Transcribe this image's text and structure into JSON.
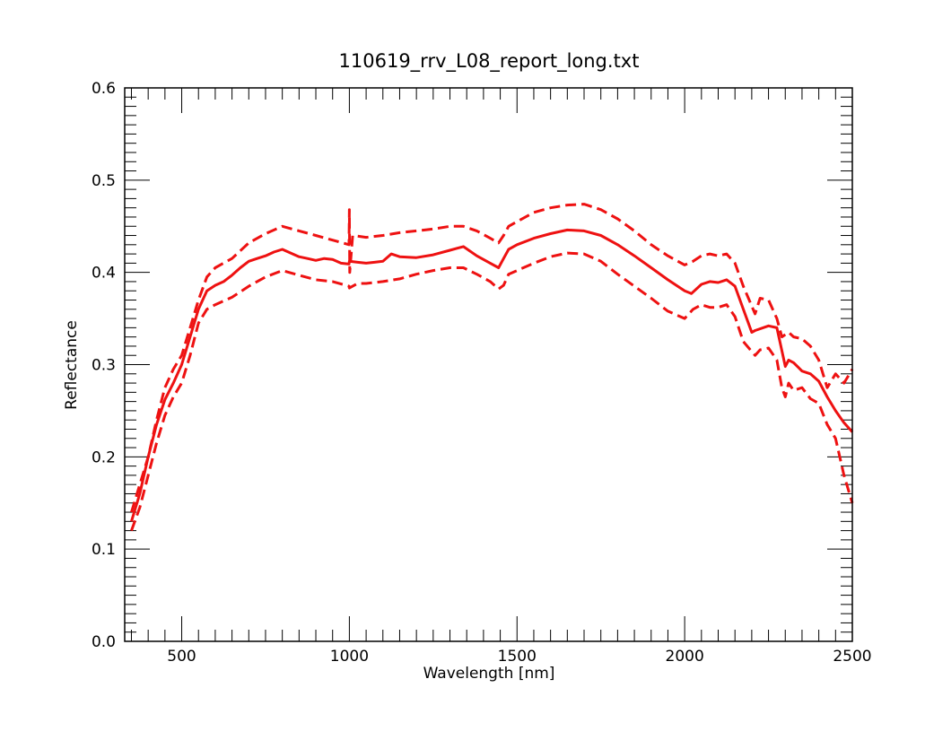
{
  "chart_data": {
    "type": "line",
    "title": "110619_rrv_L08_report_long.txt",
    "xlabel": "Wavelength [nm]",
    "ylabel": "Reflectance",
    "xlim": [
      330,
      2500
    ],
    "ylim": [
      0.0,
      0.6
    ],
    "x_ticks": [
      500,
      1000,
      1500,
      2000,
      2500
    ],
    "x_tick_labels": [
      "500",
      "1000",
      "1500",
      "2000",
      "2500"
    ],
    "y_ticks": [
      0.0,
      0.1,
      0.2,
      0.3,
      0.4,
      0.5,
      0.6
    ],
    "y_tick_labels": [
      "0.0",
      "0.1",
      "0.2",
      "0.3",
      "0.4",
      "0.5",
      "0.6"
    ],
    "grid": false,
    "series_color": "#ee1111",
    "series": [
      {
        "role": "mean",
        "style": "solid",
        "x": [
          350,
          375,
          400,
          425,
          450,
          475,
          500,
          525,
          550,
          575,
          600,
          625,
          650,
          675,
          700,
          725,
          750,
          775,
          800,
          825,
          850,
          875,
          900,
          925,
          950,
          975,
          999,
          1000,
          1025,
          1050,
          1075,
          1100,
          1125,
          1150,
          1200,
          1250,
          1300,
          1340,
          1380,
          1420,
          1445,
          1460,
          1475,
          1500,
          1550,
          1600,
          1650,
          1700,
          1750,
          1800,
          1850,
          1900,
          1950,
          2000,
          2020,
          2050,
          2075,
          2100,
          2125,
          2150,
          2175,
          2200,
          2210,
          2250,
          2275,
          2290,
          2300,
          2310,
          2325,
          2350,
          2375,
          2400,
          2425,
          2450,
          2475,
          2500
        ],
        "y": [
          0.13,
          0.16,
          0.2,
          0.235,
          0.262,
          0.28,
          0.3,
          0.33,
          0.36,
          0.38,
          0.386,
          0.39,
          0.397,
          0.405,
          0.412,
          0.415,
          0.418,
          0.422,
          0.425,
          0.421,
          0.417,
          0.415,
          0.413,
          0.415,
          0.414,
          0.41,
          0.409,
          0.412,
          0.411,
          0.41,
          0.411,
          0.412,
          0.42,
          0.417,
          0.416,
          0.419,
          0.424,
          0.428,
          0.418,
          0.41,
          0.405,
          0.415,
          0.425,
          0.43,
          0.437,
          0.442,
          0.446,
          0.445,
          0.44,
          0.43,
          0.418,
          0.405,
          0.392,
          0.38,
          0.377,
          0.387,
          0.39,
          0.389,
          0.392,
          0.385,
          0.36,
          0.335,
          0.337,
          0.342,
          0.34,
          0.315,
          0.298,
          0.305,
          0.302,
          0.293,
          0.29,
          0.282,
          0.265,
          0.25,
          0.237,
          0.227
        ]
      },
      {
        "role": "upper",
        "style": "dashed",
        "x": [
          350,
          375,
          400,
          425,
          450,
          475,
          500,
          525,
          550,
          575,
          600,
          650,
          700,
          750,
          800,
          850,
          900,
          950,
          999,
          1000,
          1001,
          1010,
          1050,
          1100,
          1150,
          1200,
          1250,
          1300,
          1340,
          1380,
          1420,
          1445,
          1460,
          1475,
          1500,
          1550,
          1600,
          1650,
          1700,
          1750,
          1800,
          1850,
          1900,
          1950,
          2000,
          2025,
          2050,
          2075,
          2100,
          2125,
          2150,
          2175,
          2210,
          2225,
          2250,
          2275,
          2290,
          2310,
          2325,
          2350,
          2375,
          2400,
          2425,
          2450,
          2475,
          2500
        ],
        "y": [
          0.14,
          0.17,
          0.2,
          0.24,
          0.275,
          0.295,
          0.31,
          0.34,
          0.37,
          0.395,
          0.405,
          0.415,
          0.432,
          0.442,
          0.45,
          0.445,
          0.44,
          0.435,
          0.43,
          0.468,
          0.4,
          0.44,
          0.438,
          0.44,
          0.443,
          0.445,
          0.447,
          0.45,
          0.45,
          0.445,
          0.437,
          0.432,
          0.44,
          0.45,
          0.455,
          0.465,
          0.47,
          0.473,
          0.474,
          0.468,
          0.458,
          0.445,
          0.43,
          0.418,
          0.408,
          0.412,
          0.418,
          0.42,
          0.418,
          0.42,
          0.41,
          0.385,
          0.355,
          0.372,
          0.37,
          0.35,
          0.33,
          0.335,
          0.33,
          0.328,
          0.32,
          0.305,
          0.275,
          0.29,
          0.28,
          0.295
        ]
      },
      {
        "role": "lower",
        "style": "dashed",
        "x": [
          350,
          375,
          400,
          425,
          450,
          475,
          500,
          525,
          550,
          575,
          600,
          650,
          700,
          750,
          800,
          850,
          900,
          950,
          999,
          1000,
          1025,
          1050,
          1100,
          1150,
          1200,
          1250,
          1300,
          1340,
          1380,
          1420,
          1445,
          1460,
          1475,
          1500,
          1550,
          1600,
          1650,
          1700,
          1750,
          1800,
          1850,
          1900,
          1950,
          2000,
          2025,
          2050,
          2075,
          2100,
          2125,
          2150,
          2175,
          2210,
          2225,
          2250,
          2275,
          2290,
          2300,
          2310,
          2325,
          2350,
          2375,
          2400,
          2425,
          2450,
          2475,
          2500
        ],
        "y": [
          0.12,
          0.145,
          0.18,
          0.215,
          0.245,
          0.265,
          0.28,
          0.31,
          0.345,
          0.36,
          0.365,
          0.373,
          0.385,
          0.395,
          0.402,
          0.397,
          0.392,
          0.39,
          0.385,
          0.383,
          0.388,
          0.388,
          0.39,
          0.393,
          0.398,
          0.402,
          0.405,
          0.405,
          0.398,
          0.39,
          0.382,
          0.386,
          0.398,
          0.402,
          0.41,
          0.417,
          0.421,
          0.42,
          0.412,
          0.398,
          0.385,
          0.372,
          0.358,
          0.35,
          0.36,
          0.365,
          0.362,
          0.362,
          0.365,
          0.352,
          0.325,
          0.31,
          0.316,
          0.318,
          0.305,
          0.275,
          0.265,
          0.28,
          0.272,
          0.275,
          0.263,
          0.258,
          0.235,
          0.22,
          0.18,
          0.15
        ]
      }
    ]
  }
}
